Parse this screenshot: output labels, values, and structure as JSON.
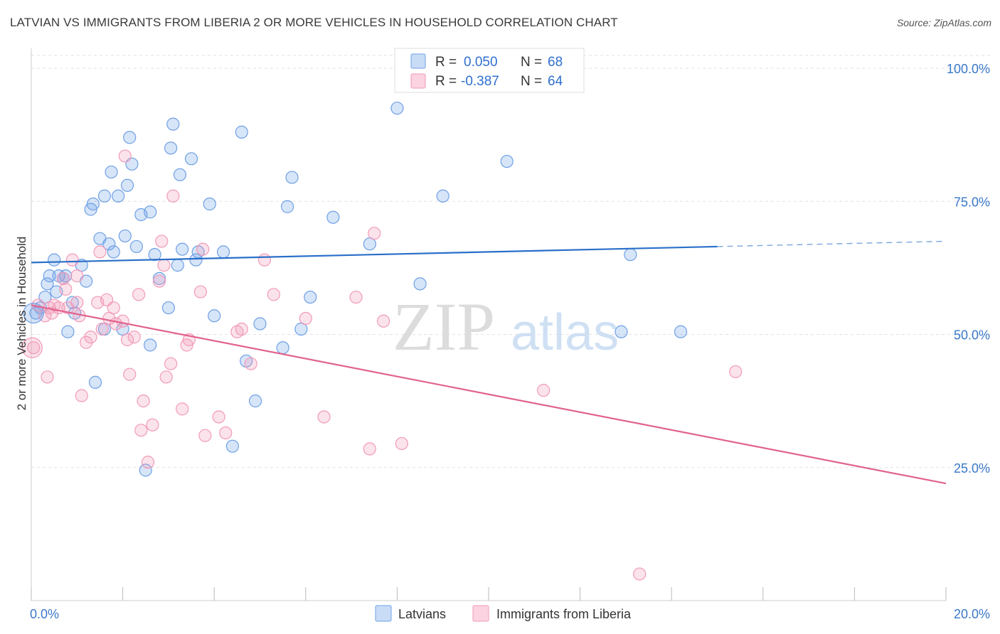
{
  "title": "LATVIAN VS IMMIGRANTS FROM LIBERIA 2 OR MORE VEHICLES IN HOUSEHOLD CORRELATION CHART",
  "source": "Source: ZipAtlas.com",
  "watermark": {
    "zip": "ZIP",
    "atlas": "atlas"
  },
  "legend_top": [
    {
      "r_label": "R =",
      "r_value": "0.050",
      "n_label": "N =",
      "n_value": "68",
      "color": "#6ea0e6"
    },
    {
      "r_label": "R =",
      "r_value": "-0.387",
      "n_label": "N =",
      "n_value": "64",
      "color": "#f29ab8"
    }
  ],
  "legend_bottom": [
    {
      "label": "Latvians",
      "color": "#6ea0e6"
    },
    {
      "label": "Immigrants from Liberia",
      "color": "#f29ab8"
    }
  ],
  "chart_data": {
    "type": "scatter",
    "xlabel": "",
    "ylabel": "2 or more Vehicles in Household",
    "xlim": [
      0,
      20
    ],
    "ylim": [
      0,
      105
    ],
    "x_tick_labels": [
      "0.0%",
      "20.0%"
    ],
    "y_ticks": [
      25,
      50,
      75,
      100
    ],
    "y_tick_labels": [
      "25.0%",
      "50.0%",
      "75.0%",
      "100.0%"
    ],
    "grid": true,
    "series": [
      {
        "name": "Latvians",
        "color": "#6ea0e6",
        "trend": {
          "x": [
            0,
            15
          ],
          "y": [
            63.5,
            66.5
          ],
          "dashed_to": [
            20,
            67.5
          ]
        },
        "points": [
          [
            0.1,
            54
          ],
          [
            0.2,
            55
          ],
          [
            0.3,
            57
          ],
          [
            0.35,
            59.5
          ],
          [
            0.4,
            61
          ],
          [
            0.5,
            64
          ],
          [
            0.55,
            58
          ],
          [
            0.6,
            61
          ],
          [
            0.7,
            60.5
          ],
          [
            0.75,
            61
          ],
          [
            0.8,
            50.5
          ],
          [
            0.9,
            56
          ],
          [
            0.95,
            54
          ],
          [
            1.1,
            63
          ],
          [
            1.2,
            60
          ],
          [
            1.3,
            73.5
          ],
          [
            1.35,
            74.5
          ],
          [
            1.5,
            68
          ],
          [
            1.6,
            76
          ],
          [
            1.7,
            67
          ],
          [
            1.75,
            80.5
          ],
          [
            1.8,
            65.5
          ],
          [
            1.9,
            76
          ],
          [
            2.0,
            51
          ],
          [
            2.05,
            68.5
          ],
          [
            2.1,
            78
          ],
          [
            2.15,
            87
          ],
          [
            2.2,
            82
          ],
          [
            2.3,
            66.5
          ],
          [
            2.4,
            72.5
          ],
          [
            2.5,
            24.5
          ],
          [
            2.6,
            73
          ],
          [
            2.7,
            65
          ],
          [
            2.8,
            60.5
          ],
          [
            3.0,
            55
          ],
          [
            3.05,
            85
          ],
          [
            3.1,
            89.5
          ],
          [
            3.2,
            63
          ],
          [
            3.25,
            80
          ],
          [
            3.3,
            66
          ],
          [
            3.5,
            83
          ],
          [
            3.6,
            64
          ],
          [
            3.65,
            65.5
          ],
          [
            3.9,
            74.5
          ],
          [
            4.0,
            53.5
          ],
          [
            4.2,
            65.5
          ],
          [
            4.4,
            29
          ],
          [
            4.6,
            88
          ],
          [
            4.7,
            45
          ],
          [
            4.9,
            37.5
          ],
          [
            5.0,
            52
          ],
          [
            5.5,
            47.5
          ],
          [
            5.6,
            74
          ],
          [
            5.7,
            79.5
          ],
          [
            5.9,
            51
          ],
          [
            6.1,
            57
          ],
          [
            6.6,
            72
          ],
          [
            7.4,
            67
          ],
          [
            8.0,
            92.5
          ],
          [
            8.5,
            59.5
          ],
          [
            9.0,
            76
          ],
          [
            10.4,
            82.5
          ],
          [
            12.9,
            50.5
          ],
          [
            13.1,
            65
          ],
          [
            14.2,
            50.5
          ],
          [
            2.6,
            48
          ],
          [
            1.4,
            41
          ],
          [
            1.6,
            51
          ]
        ]
      },
      {
        "name": "Immigrants from Liberia",
        "color": "#f29ab8",
        "trend": {
          "x": [
            0,
            20
          ],
          "y": [
            55.5,
            22
          ]
        },
        "points": [
          [
            0.05,
            47.5
          ],
          [
            0.15,
            55.5
          ],
          [
            0.3,
            53.5
          ],
          [
            0.35,
            42
          ],
          [
            0.4,
            55
          ],
          [
            0.45,
            54
          ],
          [
            0.6,
            55
          ],
          [
            0.7,
            60.5
          ],
          [
            0.75,
            58.5
          ],
          [
            0.8,
            55
          ],
          [
            0.9,
            64
          ],
          [
            1.0,
            61
          ],
          [
            1.05,
            53.5
          ],
          [
            1.1,
            38.5
          ],
          [
            1.2,
            48.5
          ],
          [
            1.3,
            49.5
          ],
          [
            1.45,
            56
          ],
          [
            1.5,
            65.5
          ],
          [
            1.55,
            51
          ],
          [
            1.65,
            56.5
          ],
          [
            1.7,
            53
          ],
          [
            1.8,
            55
          ],
          [
            1.85,
            52
          ],
          [
            2.0,
            52.5
          ],
          [
            2.05,
            83.5
          ],
          [
            2.1,
            49
          ],
          [
            2.15,
            42.5
          ],
          [
            2.25,
            49.5
          ],
          [
            2.35,
            57.5
          ],
          [
            2.4,
            32
          ],
          [
            2.45,
            37.5
          ],
          [
            2.55,
            26
          ],
          [
            2.65,
            33
          ],
          [
            2.8,
            60
          ],
          [
            2.85,
            67.5
          ],
          [
            2.9,
            63
          ],
          [
            2.95,
            42
          ],
          [
            3.05,
            44.5
          ],
          [
            3.1,
            76
          ],
          [
            3.3,
            36
          ],
          [
            3.4,
            48
          ],
          [
            3.45,
            49
          ],
          [
            3.7,
            58
          ],
          [
            3.75,
            66
          ],
          [
            3.8,
            31
          ],
          [
            4.1,
            34.5
          ],
          [
            4.25,
            31.5
          ],
          [
            4.5,
            50.5
          ],
          [
            4.6,
            51
          ],
          [
            4.8,
            44.5
          ],
          [
            5.1,
            64
          ],
          [
            5.3,
            57.5
          ],
          [
            6.0,
            53
          ],
          [
            6.4,
            34.5
          ],
          [
            7.1,
            57
          ],
          [
            7.4,
            28.5
          ],
          [
            7.5,
            69
          ],
          [
            7.7,
            52.5
          ],
          [
            8.1,
            29.5
          ],
          [
            11.2,
            39.5
          ],
          [
            13.3,
            5
          ],
          [
            15.4,
            43
          ],
          [
            0.5,
            55.5
          ],
          [
            1.0,
            56
          ]
        ]
      }
    ]
  }
}
